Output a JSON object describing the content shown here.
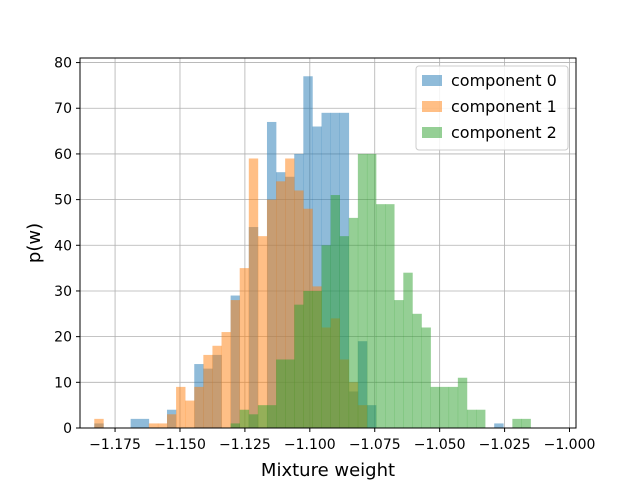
{
  "chart_data": {
    "type": "bar",
    "subtype": "overlapping-histogram",
    "xlabel": "Mixture weight",
    "ylabel": "p(w)",
    "xlim": [
      -1.1885,
      -0.9975
    ],
    "ylim": [
      0,
      81
    ],
    "xticks": [
      -1.175,
      -1.15,
      -1.125,
      -1.1,
      -1.075,
      -1.05,
      -1.025,
      -1.0
    ],
    "xtick_labels": [
      "−1.175",
      "−1.150",
      "−1.125",
      "−1.100",
      "−1.075",
      "−1.050",
      "−1.025",
      "−1.000"
    ],
    "yticks": [
      0,
      10,
      20,
      30,
      40,
      50,
      60,
      70,
      80
    ],
    "ytick_labels": [
      "0",
      "10",
      "20",
      "30",
      "40",
      "50",
      "60",
      "70",
      "80"
    ],
    "grid": true,
    "legend_position": "top-right",
    "opacity": 0.5,
    "series": [
      {
        "name": "component 0",
        "color": "#1f77b4",
        "bars": [
          {
            "x0": -1.183,
            "x1": -1.1795,
            "value": 1
          },
          {
            "x0": -1.169,
            "x1": -1.162,
            "value": 2
          },
          {
            "x0": -1.155,
            "x1": -1.1515,
            "value": 4
          },
          {
            "x0": -1.1445,
            "x1": -1.141,
            "value": 14
          },
          {
            "x0": -1.141,
            "x1": -1.1375,
            "value": 13
          },
          {
            "x0": -1.1375,
            "x1": -1.134,
            "value": 16
          },
          {
            "x0": -1.1305,
            "x1": -1.127,
            "value": 29
          },
          {
            "x0": -1.1235,
            "x1": -1.12,
            "value": 44
          },
          {
            "x0": -1.1165,
            "x1": -1.113,
            "value": 67
          },
          {
            "x0": -1.113,
            "x1": -1.1095,
            "value": 56
          },
          {
            "x0": -1.1095,
            "x1": -1.106,
            "value": 55
          },
          {
            "x0": -1.106,
            "x1": -1.1025,
            "value": 60
          },
          {
            "x0": -1.1025,
            "x1": -1.099,
            "value": 77
          },
          {
            "x0": -1.099,
            "x1": -1.0955,
            "value": 66
          },
          {
            "x0": -1.0955,
            "x1": -1.092,
            "value": 69
          },
          {
            "x0": -1.092,
            "x1": -1.0885,
            "value": 69
          },
          {
            "x0": -1.0885,
            "x1": -1.085,
            "value": 69
          },
          {
            "x0": -1.085,
            "x1": -1.0815,
            "value": 8
          },
          {
            "x0": -1.0815,
            "x1": -1.078,
            "value": 19
          },
          {
            "x0": -1.078,
            "x1": -1.0745,
            "value": 5
          },
          {
            "x0": -1.029,
            "x1": -1.0255,
            "value": 1
          }
        ]
      },
      {
        "name": "component 1",
        "color": "#ff7f0e",
        "bars": [
          {
            "x0": -1.183,
            "x1": -1.1795,
            "value": 2
          },
          {
            "x0": -1.162,
            "x1": -1.1585,
            "value": 1
          },
          {
            "x0": -1.1585,
            "x1": -1.155,
            "value": 1
          },
          {
            "x0": -1.155,
            "x1": -1.1515,
            "value": 3
          },
          {
            "x0": -1.1515,
            "x1": -1.148,
            "value": 9
          },
          {
            "x0": -1.148,
            "x1": -1.1445,
            "value": 6
          },
          {
            "x0": -1.1445,
            "x1": -1.141,
            "value": 9
          },
          {
            "x0": -1.141,
            "x1": -1.1375,
            "value": 16
          },
          {
            "x0": -1.1375,
            "x1": -1.134,
            "value": 18
          },
          {
            "x0": -1.134,
            "x1": -1.1305,
            "value": 21
          },
          {
            "x0": -1.1305,
            "x1": -1.127,
            "value": 28
          },
          {
            "x0": -1.127,
            "x1": -1.1235,
            "value": 35
          },
          {
            "x0": -1.1235,
            "x1": -1.12,
            "value": 59
          },
          {
            "x0": -1.12,
            "x1": -1.1165,
            "value": 42
          },
          {
            "x0": -1.1165,
            "x1": -1.113,
            "value": 50
          },
          {
            "x0": -1.113,
            "x1": -1.1095,
            "value": 54
          },
          {
            "x0": -1.1095,
            "x1": -1.106,
            "value": 59
          },
          {
            "x0": -1.106,
            "x1": -1.1025,
            "value": 52
          },
          {
            "x0": -1.1025,
            "x1": -1.099,
            "value": 48
          },
          {
            "x0": -1.099,
            "x1": -1.0955,
            "value": 31
          },
          {
            "x0": -1.0955,
            "x1": -1.092,
            "value": 22
          },
          {
            "x0": -1.092,
            "x1": -1.0885,
            "value": 24
          },
          {
            "x0": -1.0885,
            "x1": -1.085,
            "value": 15
          },
          {
            "x0": -1.085,
            "x1": -1.0815,
            "value": 10
          },
          {
            "x0": -1.0815,
            "x1": -1.078,
            "value": 5
          }
        ]
      },
      {
        "name": "component 2",
        "color": "#2ca02c",
        "bars": [
          {
            "x0": -1.1305,
            "x1": -1.127,
            "value": 1
          },
          {
            "x0": -1.127,
            "x1": -1.1235,
            "value": 4
          },
          {
            "x0": -1.1235,
            "x1": -1.12,
            "value": 3
          },
          {
            "x0": -1.12,
            "x1": -1.1165,
            "value": 5
          },
          {
            "x0": -1.1165,
            "x1": -1.113,
            "value": 5
          },
          {
            "x0": -1.113,
            "x1": -1.1095,
            "value": 15
          },
          {
            "x0": -1.1095,
            "x1": -1.106,
            "value": 15
          },
          {
            "x0": -1.106,
            "x1": -1.1025,
            "value": 27
          },
          {
            "x0": -1.1025,
            "x1": -1.099,
            "value": 30
          },
          {
            "x0": -1.099,
            "x1": -1.0955,
            "value": 30
          },
          {
            "x0": -1.0955,
            "x1": -1.092,
            "value": 40
          },
          {
            "x0": -1.092,
            "x1": -1.0885,
            "value": 51
          },
          {
            "x0": -1.0885,
            "x1": -1.085,
            "value": 42
          },
          {
            "x0": -1.085,
            "x1": -1.0815,
            "value": 46
          },
          {
            "x0": -1.0815,
            "x1": -1.078,
            "value": 60
          },
          {
            "x0": -1.078,
            "x1": -1.0745,
            "value": 60
          },
          {
            "x0": -1.0745,
            "x1": -1.071,
            "value": 49
          },
          {
            "x0": -1.071,
            "x1": -1.0675,
            "value": 49
          },
          {
            "x0": -1.0675,
            "x1": -1.064,
            "value": 28
          },
          {
            "x0": -1.064,
            "x1": -1.0605,
            "value": 34
          },
          {
            "x0": -1.0605,
            "x1": -1.057,
            "value": 25
          },
          {
            "x0": -1.057,
            "x1": -1.0535,
            "value": 22
          },
          {
            "x0": -1.0535,
            "x1": -1.05,
            "value": 9
          },
          {
            "x0": -1.05,
            "x1": -1.0465,
            "value": 9
          },
          {
            "x0": -1.0465,
            "x1": -1.043,
            "value": 9
          },
          {
            "x0": -1.043,
            "x1": -1.0395,
            "value": 11
          },
          {
            "x0": -1.0395,
            "x1": -1.036,
            "value": 4
          },
          {
            "x0": -1.036,
            "x1": -1.0325,
            "value": 4
          },
          {
            "x0": -1.022,
            "x1": -1.0185,
            "value": 2
          },
          {
            "x0": -1.0185,
            "x1": -1.015,
            "value": 2
          }
        ]
      }
    ]
  }
}
